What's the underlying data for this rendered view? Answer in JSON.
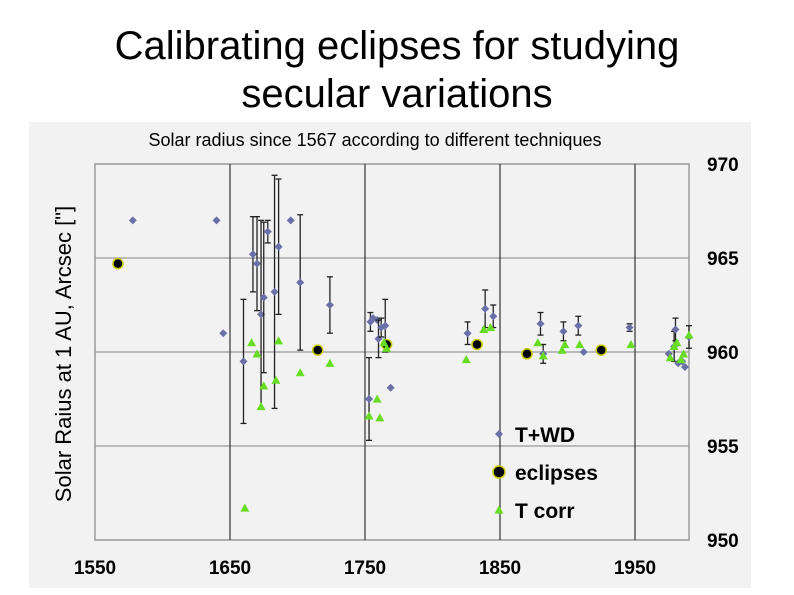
{
  "slide": {
    "title_line1": "Calibrating eclipses for studying",
    "title_line2": "secular variations"
  },
  "chart_data": {
    "type": "scatter",
    "title": "Solar radius since 1567 according to different techniques",
    "xlabel": "",
    "ylabel": "Solar Raius at 1 AU,  Arcsec [\"]",
    "xlim": [
      1550,
      1990
    ],
    "ylim": [
      950,
      970
    ],
    "xticks": [
      1550,
      1650,
      1750,
      1850,
      1950
    ],
    "yticks": [
      950,
      955,
      960,
      965,
      970
    ],
    "y_axis_side": "right",
    "grid": true,
    "legend_position": "bottom-right",
    "colors": {
      "t_wd": "#6b6fa8",
      "eclipses": "#000000",
      "eclipses_edge": "#c8c800",
      "t_corr": "#66dd22",
      "error_bar": "#222222",
      "grid": "#999999",
      "frame": "#9a9a9a"
    },
    "series": [
      {
        "name": "T+WD",
        "marker": "diamond",
        "points": [
          {
            "x": 1578,
            "y": 967.0
          },
          {
            "x": 1640,
            "y": 967.0
          },
          {
            "x": 1645,
            "y": 961.0
          },
          {
            "x": 1660,
            "y": 959.5,
            "err": 3.3
          },
          {
            "x": 1667,
            "y": 965.2,
            "err": 2.0
          },
          {
            "x": 1670,
            "y": 964.7,
            "err": 2.5
          },
          {
            "x": 1673,
            "y": 962.0,
            "err": 5.0
          },
          {
            "x": 1675,
            "y": 962.9,
            "err": 4.0
          },
          {
            "x": 1678,
            "y": 966.4,
            "err": 0.6
          },
          {
            "x": 1683,
            "y": 963.2,
            "err": 6.2
          },
          {
            "x": 1686,
            "y": 965.6,
            "err": 3.6
          },
          {
            "x": 1695,
            "y": 967.0
          },
          {
            "x": 1702,
            "y": 963.7,
            "err": 3.6
          },
          {
            "x": 1724,
            "y": 962.5,
            "err": 1.5
          },
          {
            "x": 1753,
            "y": 957.5,
            "err": 2.2
          },
          {
            "x": 1754,
            "y": 961.6,
            "err": 0.5
          },
          {
            "x": 1756,
            "y": 961.8
          },
          {
            "x": 1759,
            "y": 961.7
          },
          {
            "x": 1760,
            "y": 960.7,
            "err": 1.0
          },
          {
            "x": 1762,
            "y": 961.3,
            "err": 0.5
          },
          {
            "x": 1765,
            "y": 961.4,
            "err": 1.4
          },
          {
            "x": 1769,
            "y": 958.1
          },
          {
            "x": 1826,
            "y": 961.0,
            "err": 0.6
          },
          {
            "x": 1839,
            "y": 962.3,
            "err": 1.0
          },
          {
            "x": 1845,
            "y": 961.9,
            "err": 0.6
          },
          {
            "x": 1880,
            "y": 961.5,
            "err": 0.6
          },
          {
            "x": 1882,
            "y": 959.9,
            "err": 0.5
          },
          {
            "x": 1897,
            "y": 961.1,
            "err": 0.5
          },
          {
            "x": 1908,
            "y": 961.4,
            "err": 0.5
          },
          {
            "x": 1912,
            "y": 960.0
          },
          {
            "x": 1946,
            "y": 961.3,
            "err": 0.2
          },
          {
            "x": 1975,
            "y": 959.9
          },
          {
            "x": 1979,
            "y": 960.3,
            "err": 0.8
          },
          {
            "x": 1980,
            "y": 961.2,
            "err": 0.6
          },
          {
            "x": 1982,
            "y": 959.4
          },
          {
            "x": 1985,
            "y": 959.5
          },
          {
            "x": 1987,
            "y": 959.2
          },
          {
            "x": 1990,
            "y": 960.8,
            "err": 0.6
          }
        ]
      },
      {
        "name": "eclipses",
        "marker": "circle",
        "points": [
          {
            "x": 1567,
            "y": 964.7
          },
          {
            "x": 1715,
            "y": 960.1
          },
          {
            "x": 1766,
            "y": 960.4
          },
          {
            "x": 1833,
            "y": 960.4
          },
          {
            "x": 1870,
            "y": 959.9
          },
          {
            "x": 1925,
            "y": 960.1
          }
        ]
      },
      {
        "name": "T corr",
        "marker": "triangle",
        "points": [
          {
            "x": 1661,
            "y": 951.7
          },
          {
            "x": 1666,
            "y": 960.5
          },
          {
            "x": 1670,
            "y": 959.9
          },
          {
            "x": 1673,
            "y": 957.1
          },
          {
            "x": 1675,
            "y": 958.2
          },
          {
            "x": 1684,
            "y": 958.5
          },
          {
            "x": 1686,
            "y": 960.6
          },
          {
            "x": 1702,
            "y": 958.9
          },
          {
            "x": 1724,
            "y": 959.4
          },
          {
            "x": 1753,
            "y": 956.6
          },
          {
            "x": 1759,
            "y": 957.5
          },
          {
            "x": 1761,
            "y": 956.5
          },
          {
            "x": 1764,
            "y": 960.5
          },
          {
            "x": 1766,
            "y": 960.2
          },
          {
            "x": 1825,
            "y": 959.6
          },
          {
            "x": 1838,
            "y": 961.2
          },
          {
            "x": 1843,
            "y": 961.3
          },
          {
            "x": 1878,
            "y": 960.5
          },
          {
            "x": 1882,
            "y": 959.8
          },
          {
            "x": 1896,
            "y": 960.1
          },
          {
            "x": 1898,
            "y": 960.4
          },
          {
            "x": 1909,
            "y": 960.4
          },
          {
            "x": 1947,
            "y": 960.4
          },
          {
            "x": 1976,
            "y": 959.7
          },
          {
            "x": 1979,
            "y": 960.3
          },
          {
            "x": 1981,
            "y": 960.5
          },
          {
            "x": 1984,
            "y": 959.6
          },
          {
            "x": 1986,
            "y": 959.9
          },
          {
            "x": 1990,
            "y": 960.9
          }
        ]
      }
    ]
  }
}
